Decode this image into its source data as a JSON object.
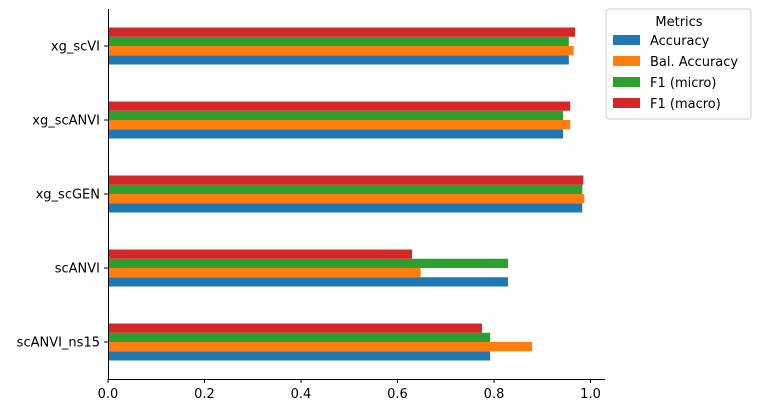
{
  "chart_data": {
    "type": "bar",
    "orientation": "horizontal",
    "categories": [
      "scANVI_ns15",
      "scANVI",
      "xg_scGEN",
      "xg_scANVI",
      "xg_scVI"
    ],
    "series": [
      {
        "name": "Accuracy",
        "color": "#1f77b4",
        "values": [
          0.792,
          0.829,
          0.983,
          0.943,
          0.955
        ]
      },
      {
        "name": "Bal. Accuracy",
        "color": "#ff7f0e",
        "values": [
          0.879,
          0.648,
          0.987,
          0.958,
          0.965
        ]
      },
      {
        "name": "F1 (micro)",
        "color": "#2ca02c",
        "values": [
          0.792,
          0.829,
          0.983,
          0.943,
          0.955
        ]
      },
      {
        "name": "F1 (macro)",
        "color": "#d62728",
        "values": [
          0.775,
          0.63,
          0.985,
          0.958,
          0.968
        ]
      }
    ],
    "xlim": [
      0,
      1.03
    ],
    "xticks": [
      "0.0",
      "0.2",
      "0.4",
      "0.6",
      "0.8",
      "1.0"
    ],
    "xlabel": "",
    "ylabel": "",
    "legend": {
      "title": "Metrics",
      "placement": "outside top-right"
    },
    "grid": false
  }
}
